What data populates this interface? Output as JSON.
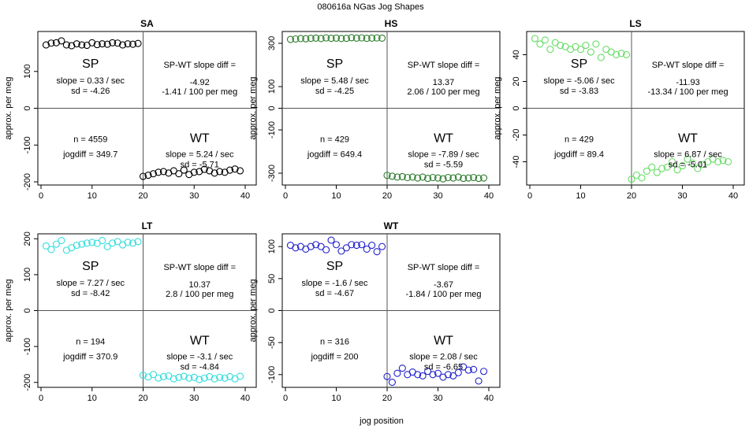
{
  "figure": {
    "title": "080616a    NGas Jog Shapes",
    "xlabel_bottom": "jog position"
  },
  "chart_data": [
    {
      "type": "scatter",
      "panel": "SA",
      "title": "SA",
      "ylabel": "approx. per meg",
      "xlim": [
        0,
        40
      ],
      "ylim": [
        -200,
        200
      ],
      "xticks": [
        0,
        10,
        20,
        30,
        40
      ],
      "yticks": [
        -200,
        -100,
        0,
        100
      ],
      "color": "#000000",
      "sp_x": [
        1,
        2,
        3,
        4,
        5,
        6,
        7,
        8,
        9,
        10,
        11,
        12,
        13,
        14,
        15,
        16,
        17,
        18,
        19
      ],
      "sp_y": [
        172,
        177,
        178,
        183,
        172,
        170,
        175,
        172,
        171,
        178,
        173,
        175,
        174,
        178,
        177,
        172,
        175,
        174,
        176
      ],
      "wt_x": [
        20,
        21,
        22,
        23,
        24,
        25,
        26,
        27,
        28,
        29,
        30,
        31,
        32,
        33,
        34,
        35,
        36,
        37,
        38,
        39
      ],
      "wt_y": [
        -185,
        -182,
        -178,
        -174,
        -172,
        -176,
        -170,
        -178,
        -168,
        -180,
        -174,
        -172,
        -166,
        -170,
        -176,
        -172,
        -174,
        -168,
        -165,
        -170
      ],
      "sp_label": "SP",
      "wt_label": "WT",
      "sp_slope": "slope = 0.33 / sec",
      "sp_sd": "sd = -4.26",
      "wt_slope": "slope = 5.24 / sec",
      "wt_sd": "sd = -5.71",
      "diff_title": "SP-WT slope diff =",
      "diff_val": "-4.92",
      "diff_per": "-1.41 / 100 per meg",
      "n": "n = 4559",
      "jogdiff": "jogdiff = 349.7"
    },
    {
      "type": "scatter",
      "panel": "HS",
      "title": "HS",
      "ylabel": "approx. per meg",
      "xlim": [
        0,
        40
      ],
      "ylim": [
        -340,
        340
      ],
      "xticks": [
        0,
        10,
        20,
        30,
        40
      ],
      "yticks": [
        -300,
        -100,
        0,
        100,
        300
      ],
      "color": "#2e7d2e",
      "sp_x": [
        1,
        2,
        3,
        4,
        5,
        6,
        7,
        8,
        9,
        10,
        11,
        12,
        13,
        14,
        15,
        16,
        17,
        18,
        19
      ],
      "sp_y": [
        318,
        320,
        322,
        321,
        323,
        324,
        322,
        325,
        323,
        324,
        322,
        323,
        326,
        324,
        325,
        323,
        324,
        325,
        324
      ],
      "wt_x": [
        20,
        21,
        22,
        23,
        24,
        25,
        26,
        27,
        28,
        29,
        30,
        31,
        32,
        33,
        34,
        35,
        36,
        37,
        38,
        39
      ],
      "wt_y": [
        -310,
        -314,
        -318,
        -316,
        -320,
        -318,
        -322,
        -318,
        -324,
        -320,
        -322,
        -326,
        -320,
        -322,
        -318,
        -324,
        -322,
        -320,
        -324,
        -322
      ],
      "sp_label": "SP",
      "wt_label": "WT",
      "sp_slope": "slope = 5.48 / sec",
      "sp_sd": "sd = -4.25",
      "wt_slope": "slope = -7.89 / sec",
      "wt_sd": "sd = -5.59",
      "diff_title": "SP-WT slope diff =",
      "diff_val": "13.37",
      "diff_per": "2.06 / 100 per meg",
      "n": "n = 429",
      "jogdiff": "jogdiff = 649.4"
    },
    {
      "type": "scatter",
      "panel": "LS",
      "title": "LS",
      "ylabel": "approx. per meg",
      "xlim": [
        0,
        40
      ],
      "ylim": [
        -55,
        55
      ],
      "xticks": [
        0,
        10,
        20,
        30,
        40
      ],
      "yticks": [
        -40,
        -20,
        0,
        20,
        40
      ],
      "color": "#66dd66",
      "sp_x": [
        1,
        2,
        3,
        4,
        5,
        6,
        7,
        8,
        9,
        10,
        11,
        12,
        13,
        14,
        15,
        16,
        17,
        18,
        19
      ],
      "sp_y": [
        52,
        48,
        51,
        44,
        49,
        47,
        46,
        44,
        46,
        44,
        47,
        42,
        48,
        38,
        44,
        42,
        40,
        41,
        40
      ],
      "wt_x": [
        20,
        21,
        22,
        23,
        24,
        25,
        26,
        27,
        28,
        29,
        30,
        31,
        32,
        33,
        34,
        35,
        36,
        37,
        38,
        39
      ],
      "wt_y": [
        -53,
        -50,
        -52,
        -47,
        -44,
        -48,
        -45,
        -44,
        -40,
        -46,
        -43,
        -38,
        -41,
        -45,
        -42,
        -40,
        -38,
        -40,
        -39,
        -40
      ],
      "sp_label": "SP",
      "wt_label": "WT",
      "sp_slope": "slope = -5.06 / sec",
      "sp_sd": "sd = -3.83",
      "wt_slope": "slope = 6.87 / sec",
      "wt_sd": "sd = -5.01",
      "diff_title": "SP-WT slope diff =",
      "diff_val": "-11.93",
      "diff_per": "-13.34 / 100 per meg",
      "n": "n = 429",
      "jogdiff": "jogdiff = 89.4"
    },
    {
      "type": "scatter",
      "panel": "LT",
      "title": "LT",
      "ylabel": "approx. per meg",
      "xlim": [
        0,
        40
      ],
      "ylim": [
        -205,
        205
      ],
      "xticks": [
        0,
        10,
        20,
        30,
        40
      ],
      "yticks": [
        -200,
        -100,
        0,
        100,
        200
      ],
      "color": "#33dddd",
      "sp_x": [
        1,
        2,
        3,
        4,
        5,
        6,
        7,
        8,
        9,
        10,
        11,
        12,
        13,
        14,
        15,
        16,
        17,
        18,
        19
      ],
      "sp_y": [
        180,
        170,
        185,
        195,
        168,
        175,
        182,
        185,
        188,
        190,
        187,
        195,
        178,
        188,
        192,
        183,
        190,
        188,
        192
      ],
      "wt_x": [
        20,
        21,
        22,
        23,
        24,
        25,
        26,
        27,
        28,
        29,
        30,
        31,
        32,
        33,
        34,
        35,
        36,
        37,
        38,
        39
      ],
      "wt_y": [
        -180,
        -185,
        -178,
        -188,
        -184,
        -182,
        -190,
        -186,
        -183,
        -188,
        -186,
        -192,
        -188,
        -184,
        -190,
        -186,
        -188,
        -184,
        -190,
        -183
      ],
      "sp_label": "SP",
      "wt_label": "WT",
      "sp_slope": "slope = 7.27 / sec",
      "sp_sd": "sd = -8.42",
      "wt_slope": "slope = -3.1 / sec",
      "wt_sd": "sd = -4.84",
      "diff_title": "SP-WT slope diff =",
      "diff_val": "10.37",
      "diff_per": "2.8 / 100 per meg",
      "n": "n = 194",
      "jogdiff": "jogdiff = 370.9"
    },
    {
      "type": "scatter",
      "panel": "WT",
      "title": "WT",
      "ylabel": "approx. per meg",
      "xlim": [
        0,
        40
      ],
      "ylim": [
        -115,
        115
      ],
      "xticks": [
        0,
        10,
        20,
        30,
        40
      ],
      "yticks": [
        -100,
        -50,
        0,
        50,
        100
      ],
      "color": "#2222cc",
      "sp_x": [
        1,
        2,
        3,
        4,
        5,
        6,
        7,
        8,
        9,
        10,
        11,
        12,
        13,
        14,
        15,
        16,
        17,
        18,
        19
      ],
      "sp_y": [
        102,
        98,
        100,
        96,
        100,
        103,
        100,
        95,
        110,
        103,
        93,
        98,
        103,
        102,
        103,
        96,
        102,
        92,
        100
      ],
      "wt_x": [
        20,
        21,
        22,
        23,
        24,
        25,
        26,
        27,
        28,
        29,
        30,
        31,
        32,
        33,
        34,
        35,
        36,
        37,
        38,
        39
      ],
      "wt_y": [
        -103,
        -112,
        -98,
        -90,
        -100,
        -96,
        -100,
        -102,
        -95,
        -100,
        -98,
        -104,
        -100,
        -102,
        -97,
        -88,
        -93,
        -92,
        -110,
        -95
      ],
      "sp_label": "SP",
      "wt_label": "WT",
      "sp_slope": "slope = -1.6 / sec",
      "sp_sd": "sd = -4.67",
      "wt_slope": "slope = 2.08 / sec",
      "wt_sd": "sd = -6.65",
      "diff_title": "SP-WT slope diff =",
      "diff_val": "-3.67",
      "diff_per": "-1.84 / 100 per meg",
      "n": "n = 316",
      "jogdiff": "jogdiff = 200"
    }
  ]
}
